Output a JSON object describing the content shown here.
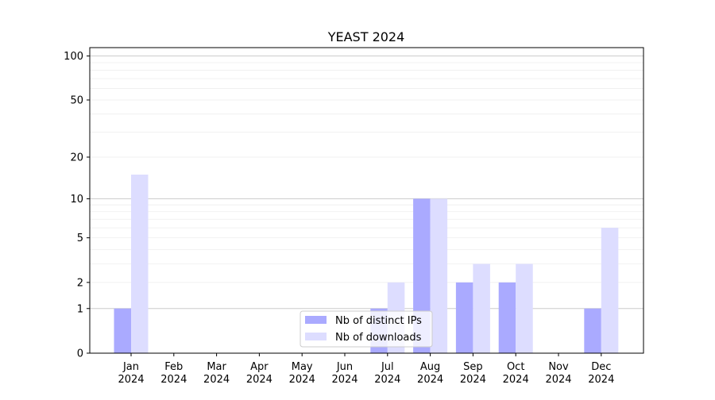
{
  "chart_data": {
    "type": "bar",
    "title": "YEAST 2024",
    "xlabel": "",
    "ylabel": "",
    "yscale": "log(1+y)",
    "ylim": [
      0,
      114
    ],
    "yticks": [
      0,
      1,
      2,
      5,
      10,
      20,
      50,
      100
    ],
    "grid": true,
    "legend_placement": "bottom-center",
    "categories": [
      "Jan\n2024",
      "Feb\n2024",
      "Mar\n2024",
      "Apr\n2024",
      "May\n2024",
      "Jun\n2024",
      "Jul\n2024",
      "Aug\n2024",
      "Sep\n2024",
      "Oct\n2024",
      "Nov\n2024",
      "Dec\n2024"
    ],
    "series": [
      {
        "name": "Nb of distinct IPs",
        "color": "#aaaaff",
        "values": [
          1,
          0,
          0,
          0,
          0,
          0,
          1,
          10,
          2,
          2,
          0,
          1
        ]
      },
      {
        "name": "Nb of downloads",
        "color": "#ddddff",
        "values": [
          15,
          0,
          0,
          0,
          0,
          0,
          2,
          10,
          3,
          3,
          0,
          6
        ]
      }
    ]
  }
}
